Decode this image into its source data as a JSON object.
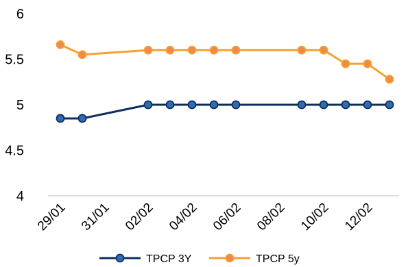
{
  "chart_data": {
    "type": "line",
    "title": "",
    "xlabel": "",
    "ylabel": "",
    "ylim": [
      4,
      6
    ],
    "yticks": [
      "4",
      "4.5",
      "5",
      "5.5",
      "6"
    ],
    "xticks": [
      "29/01",
      "31/01",
      "02/02",
      "04/02",
      "06/02",
      "08/02",
      "10/02",
      "12/02"
    ],
    "x_range": [
      "29/01",
      "13/02"
    ],
    "grid": false,
    "legend_position": "bottom",
    "series": [
      {
        "name": "TPCP 3Y",
        "color": "#0f2d5c",
        "marker_fill": "#2e6db5",
        "points": [
          {
            "x": "29/01",
            "y": 4.85
          },
          {
            "x": "30/01",
            "y": 4.85
          },
          {
            "x": "02/02",
            "y": 5.0
          },
          {
            "x": "03/02",
            "y": 5.0
          },
          {
            "x": "04/02",
            "y": 5.0
          },
          {
            "x": "05/02",
            "y": 5.0
          },
          {
            "x": "06/02",
            "y": 5.0
          },
          {
            "x": "09/02",
            "y": 5.0
          },
          {
            "x": "10/02",
            "y": 5.0
          },
          {
            "x": "11/02",
            "y": 5.0
          },
          {
            "x": "12/02",
            "y": 5.0
          },
          {
            "x": "13/02",
            "y": 5.0
          }
        ]
      },
      {
        "name": "TPCP 5y",
        "color": "#f4a12c",
        "marker_fill": "#f08a4b",
        "points": [
          {
            "x": "29/01",
            "y": 5.66
          },
          {
            "x": "30/01",
            "y": 5.55
          },
          {
            "x": "02/02",
            "y": 5.6
          },
          {
            "x": "03/02",
            "y": 5.6
          },
          {
            "x": "04/02",
            "y": 5.6
          },
          {
            "x": "05/02",
            "y": 5.6
          },
          {
            "x": "06/02",
            "y": 5.6
          },
          {
            "x": "09/02",
            "y": 5.6
          },
          {
            "x": "10/02",
            "y": 5.6
          },
          {
            "x": "11/02",
            "y": 5.45
          },
          {
            "x": "12/02",
            "y": 5.45
          },
          {
            "x": "13/02",
            "y": 5.28
          }
        ]
      }
    ]
  }
}
